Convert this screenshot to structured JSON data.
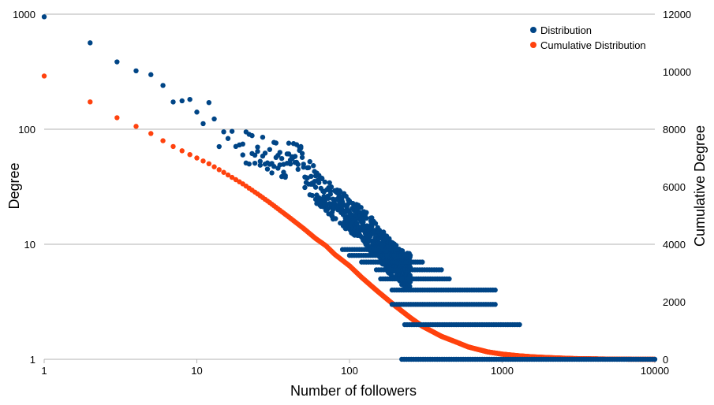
{
  "chart_data": {
    "type": "scatter",
    "title": "",
    "xlabel": "Number of followers",
    "ylabel": "Degree",
    "y2label": "Cumulative Degree",
    "x_scale": "log",
    "y_scale": "log",
    "y2_scale": "linear",
    "xlim": [
      1,
      10000
    ],
    "ylim": [
      1,
      1000
    ],
    "y2lim": [
      0,
      12000
    ],
    "x_ticks": [
      "1",
      "10",
      "100",
      "1000",
      "10000"
    ],
    "y_ticks": [
      "1",
      "10",
      "100",
      "1000"
    ],
    "y2_ticks": [
      "0",
      "2000",
      "4000",
      "6000",
      "8000",
      "10000",
      "12000"
    ],
    "grid": "horizontal",
    "legend_position": "top-right",
    "colors": {
      "distribution": "#004586",
      "cumulative": "#ff420e"
    },
    "series": [
      {
        "name": "Distribution",
        "axis": "left",
        "x": [
          1,
          2,
          3,
          4,
          5,
          6,
          7,
          8,
          9,
          10,
          11,
          12,
          13,
          14,
          15,
          16,
          17,
          18,
          19,
          20,
          22,
          25,
          28,
          30,
          33,
          36,
          40,
          45,
          50,
          55,
          60,
          70,
          80,
          90,
          100,
          120,
          140,
          160,
          180,
          200,
          230,
          260,
          300,
          350,
          400,
          500,
          600,
          700,
          800,
          900,
          1000,
          1100,
          1300
        ],
        "y": [
          950,
          560,
          400,
          330,
          300,
          240,
          180,
          170,
          180,
          150,
          130,
          140,
          110,
          95,
          95,
          100,
          85,
          90,
          70,
          75,
          65,
          62,
          60,
          55,
          58,
          50,
          55,
          62,
          45,
          38,
          32,
          28,
          22,
          20,
          18,
          15,
          12,
          10,
          8,
          7,
          6,
          6,
          5,
          5,
          4,
          4,
          3,
          3,
          3,
          3,
          2,
          2,
          2
        ],
        "scatter_bands": [
          {
            "y": 1,
            "x_from": 220,
            "x_to": 10000
          },
          {
            "y": 2,
            "x_from": 230,
            "x_to": 1300
          },
          {
            "y": 3,
            "x_from": 190,
            "x_to": 900
          },
          {
            "y": 4,
            "x_from": 190,
            "x_to": 900
          },
          {
            "y": 5,
            "x_from": 160,
            "x_to": 450
          },
          {
            "y": 6,
            "x_from": 150,
            "x_to": 400
          },
          {
            "y": 7,
            "x_from": 120,
            "x_to": 300
          },
          {
            "y": 8,
            "x_from": 100,
            "x_to": 250
          },
          {
            "y": 9,
            "x_from": 90,
            "x_to": 200
          }
        ]
      },
      {
        "name": "Cumulative Distribution",
        "axis": "right",
        "x": [
          1,
          2,
          3,
          4,
          5,
          6,
          7,
          8,
          10,
          12,
          15,
          20,
          25,
          30,
          40,
          50,
          60,
          70,
          80,
          100,
          120,
          150,
          200,
          250,
          300,
          400,
          500,
          600,
          800,
          1000,
          1300,
          1600,
          2000,
          2500,
          3000,
          4000,
          5000,
          6000,
          7000,
          8000,
          10000
        ],
        "y": [
          9850,
          8950,
          8400,
          8100,
          7850,
          7600,
          7400,
          7250,
          7000,
          6800,
          6500,
          6100,
          5750,
          5450,
          4950,
          4550,
          4200,
          3950,
          3650,
          3250,
          2850,
          2400,
          1850,
          1450,
          1150,
          800,
          600,
          430,
          260,
          180,
          120,
          85,
          60,
          40,
          25,
          15,
          8,
          5,
          3,
          2,
          0
        ]
      }
    ]
  }
}
